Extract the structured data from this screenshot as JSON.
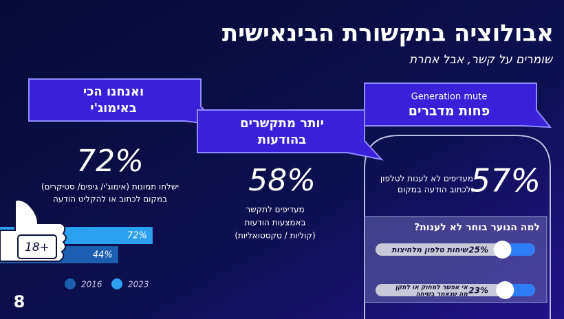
{
  "title": "אבולוציה בתקשורת הבינאישית",
  "subtitle": "שומרים על קשר, אבל אחרת",
  "callouts": [
    {
      "lines": [
        "ואנחנו הכי",
        "באימוג'י"
      ]
    },
    {
      "lines": [
        "יותר מתקשרים",
        "בהודעות"
      ]
    },
    {
      "eyebrow": "Generation mute",
      "lines": [
        "פחות מדברים"
      ]
    }
  ],
  "stats": [
    {
      "big": "72%",
      "lines": [
        "ישלחו תמונות (אימוג'י/ גיפים/ סטיקרים)",
        "במקום  לכתוב או להקליט הודעה"
      ]
    },
    {
      "big": "58%",
      "lines": [
        "מעדיפים לתקשר",
        "באמצעות הודעות",
        "(קוליות / טקסטואליות)"
      ]
    },
    {
      "big": "57%",
      "lines": [
        "מעדיפים לא לענות לטלפון",
        "ולכתוב הודעה במקום"
      ]
    }
  ],
  "age_badge": "18+",
  "bars": [
    {
      "name": "2023",
      "color": "#2aa0ee",
      "value": 72,
      "value_label": "72%"
    },
    {
      "name": "2016",
      "color": "#1c5fb0",
      "value": 44,
      "value_label": "44%"
    }
  ],
  "poll": {
    "question": "למה הנוער בוחר לא לענות?",
    "items": [
      {
        "lines": [
          "שיחות טלפון מלחיצות"
        ],
        "value": 25,
        "value_label": "25%"
      },
      {
        "lines": [
          "אי אפשר למחוק או לתקן",
          "מה שנאמר בשיחה"
        ],
        "value": 23,
        "value_label": "23%"
      }
    ]
  },
  "logo": "8"
}
